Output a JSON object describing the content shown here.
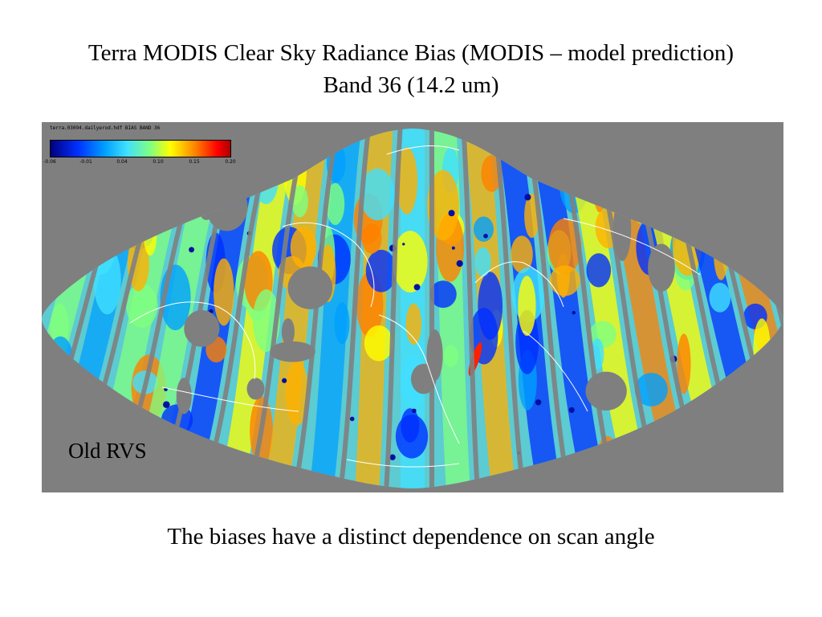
{
  "title": {
    "line1": "Terra MODIS Clear Sky Radiance Bias (MODIS – model prediction)",
    "line2": "Band 36 (14.2 um)"
  },
  "map": {
    "header": "terra.03094.dailyerod.hdf BIAS BAND 36",
    "label": "Old RVS",
    "colors": {
      "background": "#7f7f7f",
      "coastline": "#ffffff",
      "scale": [
        "#000080",
        "#0030ff",
        "#00a0ff",
        "#40e0ff",
        "#80ff80",
        "#ffff00",
        "#ff8000",
        "#ff0000",
        "#a00000"
      ]
    },
    "legend": {
      "ticks": [
        "-0.06",
        "-0.01",
        "0.04",
        "0.10",
        "0.15",
        "0.20"
      ]
    }
  },
  "caption": "The biases have a distinct dependence on scan angle"
}
